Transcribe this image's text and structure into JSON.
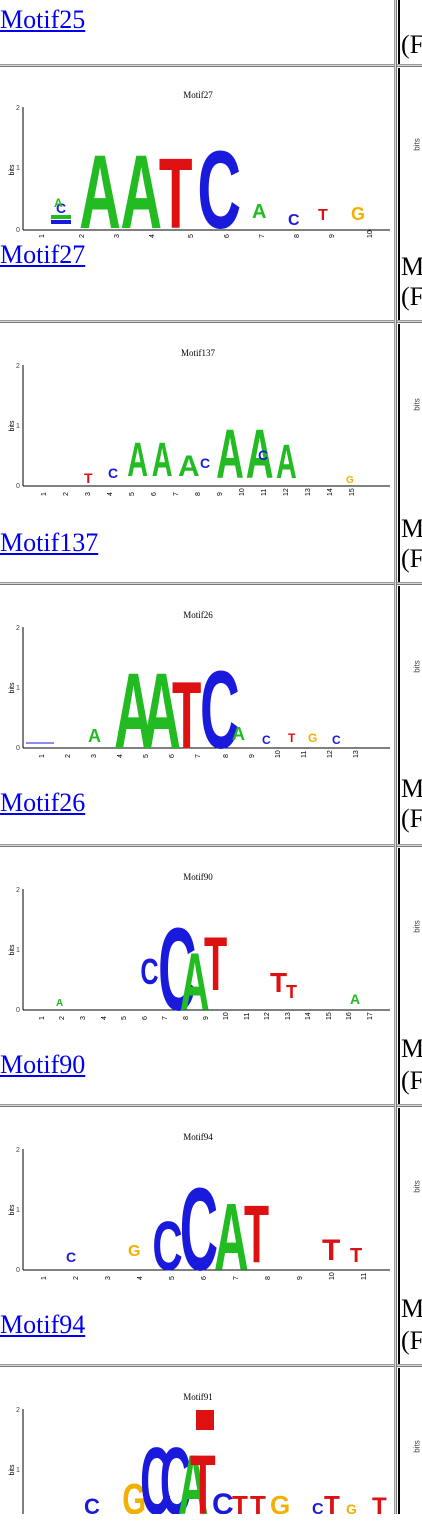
{
  "rows": [
    {
      "link": "Motif25",
      "logo_title": "",
      "positions": 0,
      "right": [
        "",
        "(F"
      ]
    },
    {
      "link": "Motif27",
      "logo_title": "Motif27",
      "positions": 10,
      "right": [
        "M",
        "(F"
      ]
    },
    {
      "link": "Motif137",
      "logo_title": "Motif137",
      "positions": 15,
      "right": [
        "M",
        "(F"
      ]
    },
    {
      "link": "Motif26",
      "logo_title": "Motif26",
      "positions": 13,
      "right": [
        "M",
        "(F"
      ]
    },
    {
      "link": "Motif90",
      "logo_title": "Motif90",
      "positions": 17,
      "right": [
        "M",
        "(F"
      ]
    },
    {
      "link": "Motif94",
      "logo_title": "Motif94",
      "positions": 11,
      "right": [
        "M",
        "(F"
      ]
    },
    {
      "link": "",
      "logo_title": "Motif91",
      "positions": 0,
      "right": [
        "",
        ""
      ]
    }
  ],
  "logo_axis": {
    "ylabel": "bits",
    "yticks": [
      "0",
      "1",
      "2"
    ]
  },
  "colors": {
    "A": "#22bb22",
    "C": "#1a1adc",
    "G": "#f2b100",
    "T": "#dd1111",
    "link": "#0000ee"
  }
}
